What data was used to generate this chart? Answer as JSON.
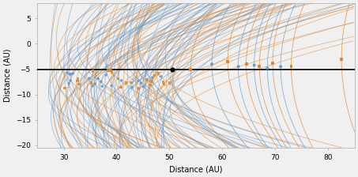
{
  "xlim": [
    25,
    85
  ],
  "ylim": [
    -20.5,
    8
  ],
  "xlabel": "Distance (AU)",
  "ylabel": "Distance (AU)",
  "xlabel_fontsize": 7,
  "ylabel_fontsize": 7,
  "tick_fontsize": 6.5,
  "xticks": [
    30,
    40,
    50,
    60,
    70,
    80
  ],
  "yticks": [
    -20,
    -15,
    -10,
    -5,
    0,
    5
  ],
  "bg_color": "#f0f0f0",
  "hline_y": -5.0,
  "hline_color": "black",
  "hline_lw": 1.2,
  "probe_x": 50.5,
  "probe_y": -5.0,
  "probe_color": "black",
  "probe_size": 12,
  "blue_color": "#6699cc",
  "orange_color": "#dd8833",
  "line_alpha": 0.6,
  "line_lw": 0.55,
  "dot_size": 8,
  "figsize": [
    4.53,
    2.24
  ],
  "dpi": 100,
  "n_blue": 50,
  "n_orange": 50
}
